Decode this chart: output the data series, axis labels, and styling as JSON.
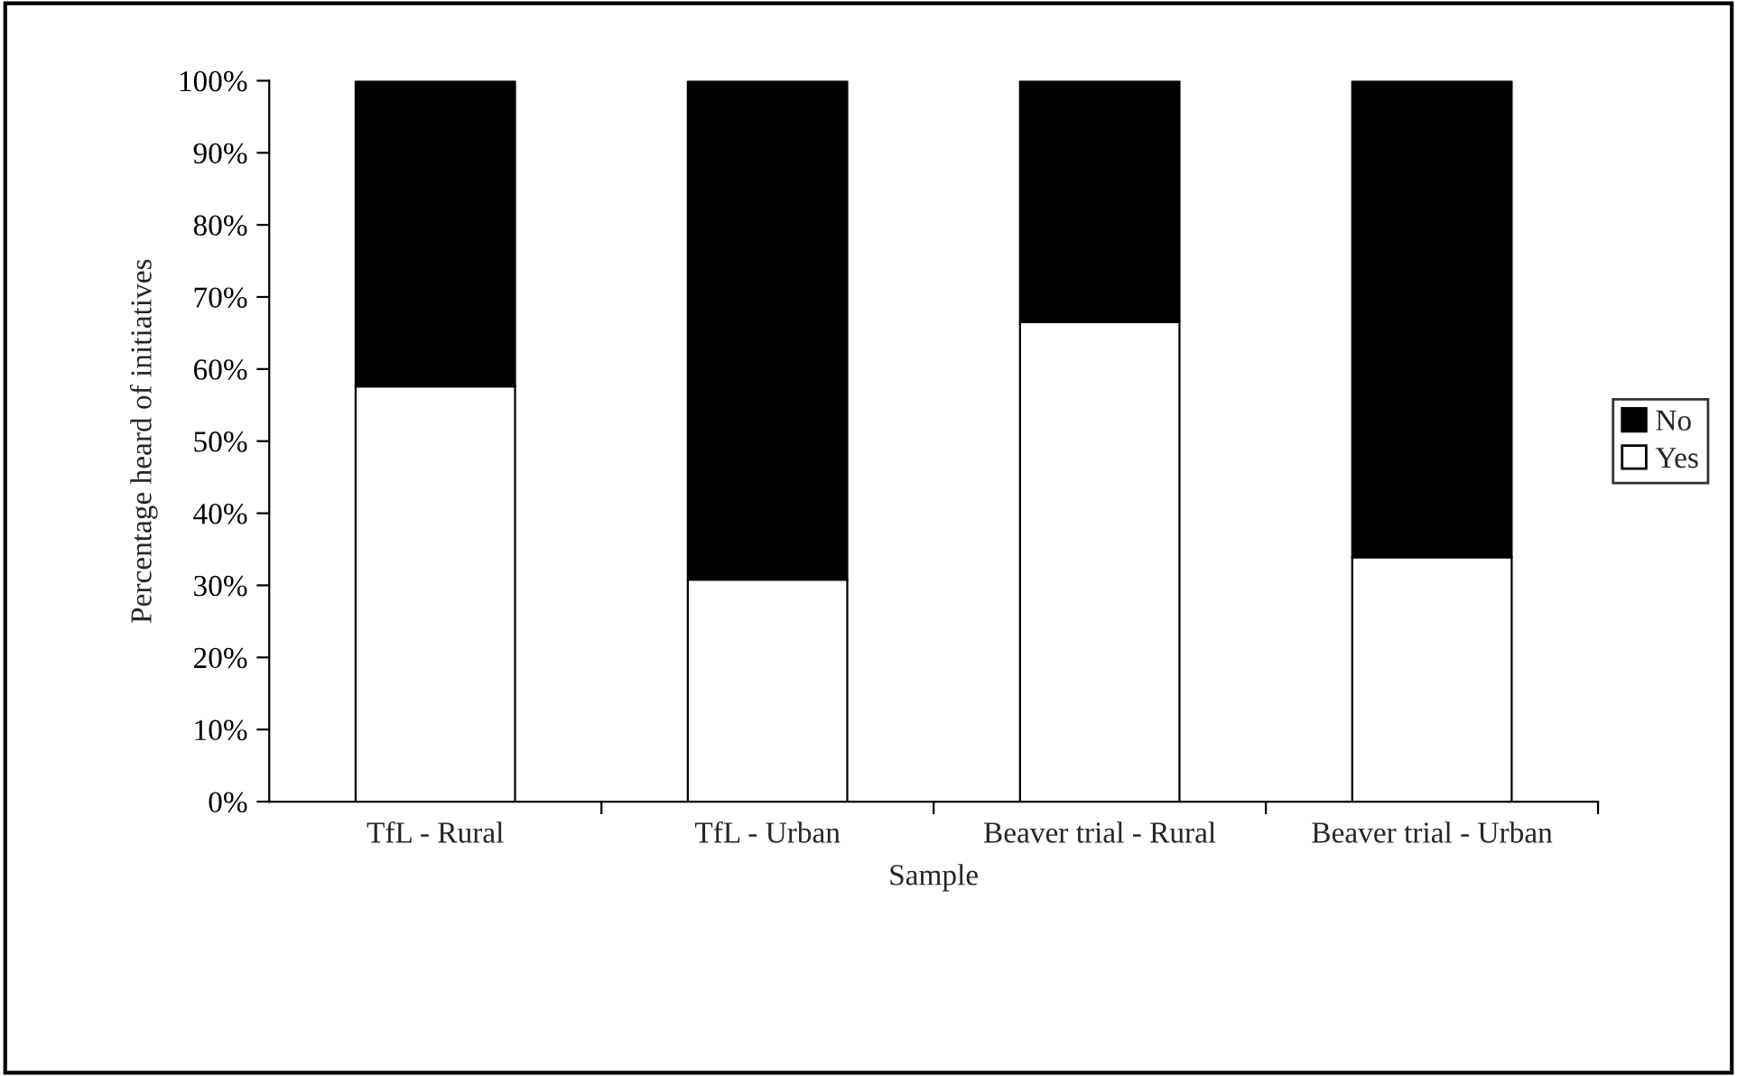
{
  "chart_data": {
    "type": "bar",
    "stacked": true,
    "xlabel": "Sample",
    "ylabel": "Percentage heard of initiatives",
    "categories": [
      "TfL - Rural",
      "TfL - Urban",
      "Beaver trial - Rural",
      "Beaver trial - Urban"
    ],
    "series": [
      {
        "name": "Yes",
        "color": "#ffffff",
        "values": [
          57.6,
          30.8,
          66.5,
          33.9
        ]
      },
      {
        "name": "No",
        "color": "#000000",
        "values": [
          42.4,
          69.2,
          33.5,
          66.1
        ]
      }
    ],
    "ylim": [
      0,
      100
    ],
    "yticks": [
      {
        "value": 0,
        "label": "0%"
      },
      {
        "value": 10,
        "label": "10%"
      },
      {
        "value": 20,
        "label": "20%"
      },
      {
        "value": 30,
        "label": "30%"
      },
      {
        "value": 40,
        "label": "40%"
      },
      {
        "value": 50,
        "label": "50%"
      },
      {
        "value": 60,
        "label": "60%"
      },
      {
        "value": 70,
        "label": "70%"
      },
      {
        "value": 80,
        "label": "80%"
      },
      {
        "value": 90,
        "label": "90%"
      },
      {
        "value": 100,
        "label": "100%"
      }
    ],
    "grid": false,
    "legend": "right"
  }
}
